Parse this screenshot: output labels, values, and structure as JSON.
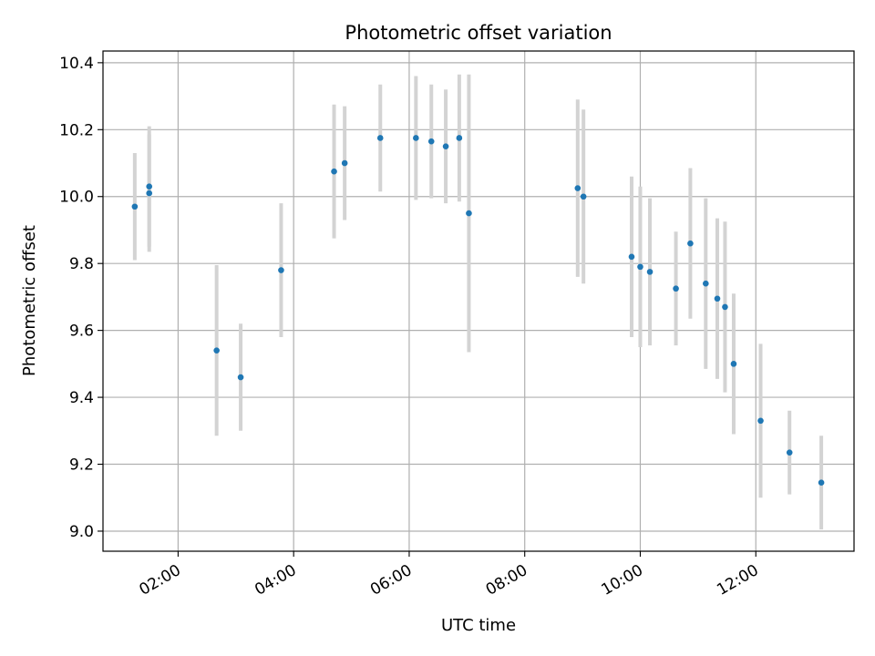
{
  "chart_data": {
    "type": "scatter",
    "title": "Photometric offset variation",
    "xlabel": "UTC time",
    "ylabel": "Photometric offset",
    "x_axis": "time",
    "xlim": [
      "00:42",
      "13:42"
    ],
    "ylim": [
      8.94,
      10.435
    ],
    "x_ticks": [
      "02:00",
      "04:00",
      "06:00",
      "08:00",
      "10:00",
      "12:00"
    ],
    "y_ticks": [
      "9.0",
      "9.2",
      "9.4",
      "9.6",
      "9.8",
      "10.0",
      "10.2",
      "10.4"
    ],
    "grid": true,
    "point_color": "#1f77b4",
    "errorbar_color": "#d3d3d3",
    "points": [
      {
        "time": "01:15",
        "y": 9.97,
        "err": 0.16
      },
      {
        "time": "01:30",
        "y": 10.03,
        "err": 0.18
      },
      {
        "time": "01:30",
        "y": 10.01,
        "err": 0.175
      },
      {
        "time": "02:40",
        "y": 9.54,
        "err": 0.255
      },
      {
        "time": "03:05",
        "y": 9.46,
        "err": 0.16
      },
      {
        "time": "03:47",
        "y": 9.78,
        "err": 0.2
      },
      {
        "time": "04:42",
        "y": 10.075,
        "err": 0.2
      },
      {
        "time": "04:53",
        "y": 10.1,
        "err": 0.17
      },
      {
        "time": "05:30",
        "y": 10.175,
        "err": 0.16
      },
      {
        "time": "06:07",
        "y": 10.175,
        "err": 0.185
      },
      {
        "time": "06:23",
        "y": 10.165,
        "err": 0.17
      },
      {
        "time": "06:38",
        "y": 10.15,
        "err": 0.17
      },
      {
        "time": "06:52",
        "y": 10.175,
        "err": 0.19
      },
      {
        "time": "07:02",
        "y": 9.95,
        "err": 0.415
      },
      {
        "time": "08:55",
        "y": 10.025,
        "err": 0.265
      },
      {
        "time": "09:01",
        "y": 10.0,
        "err": 0.26
      },
      {
        "time": "09:51",
        "y": 9.82,
        "err": 0.24
      },
      {
        "time": "10:00",
        "y": 9.79,
        "err": 0.24
      },
      {
        "time": "10:10",
        "y": 9.775,
        "err": 0.22
      },
      {
        "time": "10:37",
        "y": 9.725,
        "err": 0.17
      },
      {
        "time": "10:52",
        "y": 9.86,
        "err": 0.225
      },
      {
        "time": "11:08",
        "y": 9.74,
        "err": 0.255
      },
      {
        "time": "11:20",
        "y": 9.695,
        "err": 0.24
      },
      {
        "time": "11:28",
        "y": 9.67,
        "err": 0.255
      },
      {
        "time": "11:37",
        "y": 9.5,
        "err": 0.21
      },
      {
        "time": "12:05",
        "y": 9.33,
        "err": 0.23
      },
      {
        "time": "12:35",
        "y": 9.235,
        "err": 0.125
      },
      {
        "time": "13:08",
        "y": 9.145,
        "err": 0.14
      }
    ]
  }
}
